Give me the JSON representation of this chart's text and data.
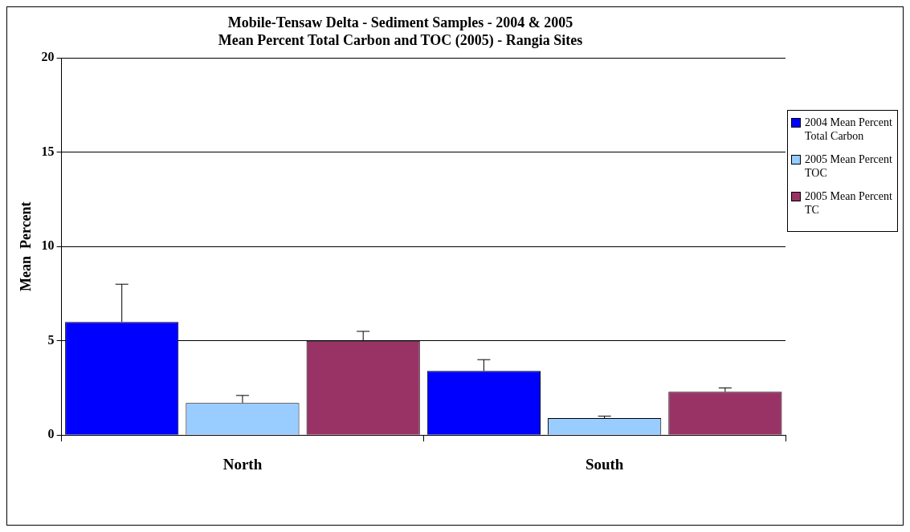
{
  "chart_data": {
    "type": "bar",
    "title": [
      "Mobile-Tensaw Delta - Sediment Samples - 2004 & 2005",
      "Mean Percent Total Carbon and TOC (2005) - Rangia Sites"
    ],
    "ylabel": "Mean  Percent",
    "categories": [
      "North",
      "South"
    ],
    "series": [
      {
        "name": "2004 Mean Percent Total Carbon",
        "color": "#0000ff",
        "values": [
          6.0,
          3.4
        ],
        "errors": [
          [
            6.0,
            8.0
          ],
          [
            3.4,
            4.0
          ]
        ]
      },
      {
        "name": "2005 Mean Percent TOC",
        "color": "#99ccff",
        "values": [
          1.7,
          0.9
        ],
        "errors": [
          [
            1.7,
            2.1
          ],
          [
            0.9,
            1.0
          ]
        ]
      },
      {
        "name": "2005 Mean Percent TC",
        "color": "#993366",
        "values": [
          5.0,
          2.3
        ],
        "errors": [
          [
            5.0,
            5.5
          ],
          [
            2.3,
            2.5
          ]
        ]
      }
    ],
    "ylim": [
      0,
      20
    ],
    "yticks": [
      0,
      5,
      10,
      15,
      20
    ],
    "grid": "y",
    "legend": "top right"
  }
}
